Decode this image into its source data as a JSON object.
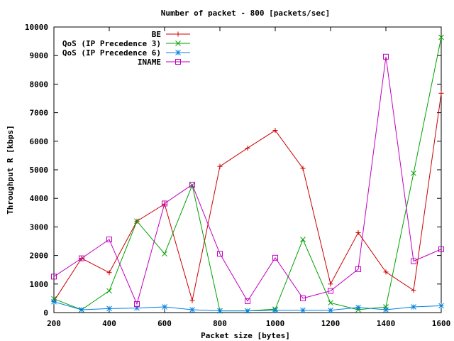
{
  "chart_data": {
    "type": "line",
    "title": "Number of packet - 800 [packets/sec]",
    "xlabel": "Packet size [bytes]",
    "ylabel": "Throughput R [kbps]",
    "xlim": [
      200,
      1600
    ],
    "ylim": [
      0,
      10000
    ],
    "xticks": [
      200,
      400,
      600,
      800,
      1000,
      1200,
      1400,
      1600
    ],
    "yticks": [
      0,
      1000,
      2000,
      3000,
      4000,
      5000,
      6000,
      7000,
      8000,
      9000,
      10000
    ],
    "grid": false,
    "legend": "top-left",
    "x": [
      200,
      300,
      400,
      500,
      600,
      700,
      800,
      900,
      1000,
      1100,
      1200,
      1300,
      1400,
      1500,
      1600
    ],
    "series": [
      {
        "name": "BE",
        "color": "#cc0000",
        "marker": "plus",
        "values": [
          400,
          1900,
          1400,
          3200,
          3800,
          420,
          5120,
          5760,
          6380,
          5050,
          1000,
          2800,
          1420,
          780,
          7680
        ]
      },
      {
        "name": "QoS (IP Precedence 3)",
        "color": "#00a000",
        "marker": "cross",
        "values": [
          480,
          100,
          760,
          3200,
          2060,
          4460,
          60,
          60,
          120,
          2560,
          340,
          100,
          200,
          4880,
          9640
        ]
      },
      {
        "name": "QoS (IP Precedence 6)",
        "color": "#0080e0",
        "marker": "star",
        "values": [
          380,
          100,
          140,
          160,
          200,
          100,
          60,
          60,
          80,
          80,
          80,
          180,
          100,
          200,
          240
        ]
      },
      {
        "name": "INAME",
        "color": "#c000c0",
        "marker": "square",
        "values": [
          1260,
          1900,
          2560,
          300,
          3820,
          4480,
          2060,
          400,
          1920,
          500,
          760,
          1520,
          8960,
          1800,
          2220
        ]
      }
    ]
  }
}
